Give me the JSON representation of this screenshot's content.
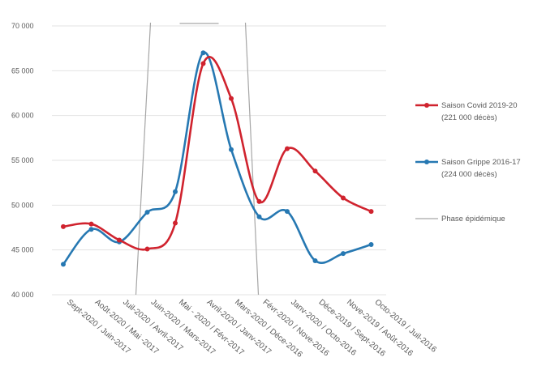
{
  "chart_data": {
    "type": "line",
    "title": "",
    "xlabel": "",
    "ylabel": "",
    "ylim": [
      40000,
      70000
    ],
    "yticks": [
      40000,
      45000,
      50000,
      55000,
      60000,
      65000,
      70000
    ],
    "ytick_labels": [
      "40 000",
      "45 000",
      "50 000",
      "55 000",
      "60 000",
      "65 000",
      "70 000"
    ],
    "grid": true,
    "legend_position": "right",
    "categories": [
      "Sept-2020 / Juin-2017",
      "Août-2020 / Mai -2017",
      "Juil-2020 / Avril-2017",
      "Juin-2020 / Mars-2017",
      "Mai - 2020 / Févr-2017",
      "Avril-2020 / Janv-2017",
      "Mars-2020 / Déce-2016",
      "Févr-2020 / Nove-2016",
      "Janv-2020 / Octo-2016",
      "Déce-2019 / Sept-2016",
      "Nove-2019 / Août-2016",
      "Octo-2019 / Juil-2016"
    ],
    "series": [
      {
        "name": "Saison Covid 2019-20",
        "sublabel": "(221 000 décès)",
        "color": "#d0232e",
        "values": [
          47600,
          47900,
          46100,
          45100,
          48000,
          65800,
          61900,
          50400,
          56300,
          53800,
          50800,
          49300
        ]
      },
      {
        "name": "Saison Grippe 2016-17",
        "sublabel": "(224 000 décès)",
        "color": "#2678b2",
        "values": [
          43400,
          47300,
          45900,
          49200,
          51500,
          67000,
          56200,
          48700,
          49300,
          43800,
          44600,
          45600
        ]
      }
    ],
    "phase": {
      "name": "Phase épidémique",
      "color": "#a6a6a6",
      "start_index": 3,
      "end_index": 7
    }
  }
}
